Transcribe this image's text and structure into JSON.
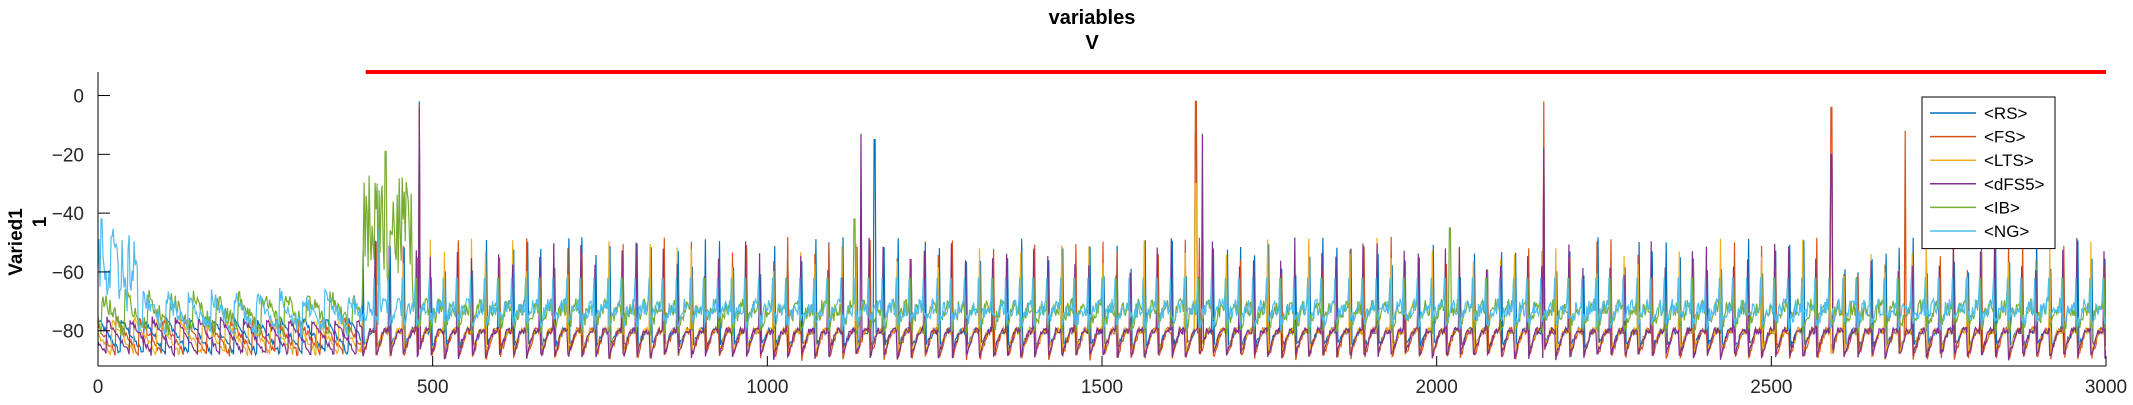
{
  "figure": {
    "title_line1": "variables",
    "title_line2": "V",
    "ylabel_line1": "Varied1",
    "ylabel_line2": "1"
  },
  "chart_data": {
    "type": "line",
    "title": "variables\nV",
    "xlabel": "",
    "ylabel": "Varied1 1",
    "xlim": [
      0,
      3000
    ],
    "ylim": [
      -92,
      8
    ],
    "xticks": [
      0,
      500,
      1000,
      1500,
      2000,
      2500,
      3000
    ],
    "yticks": [
      0,
      -20,
      -40,
      -60,
      -80
    ],
    "grid": false,
    "legend_position": "top-right",
    "stimulus_bar": {
      "x_start": 400,
      "x_end": 3000,
      "y": 8,
      "color": "#ff0000"
    },
    "series": [
      {
        "name": "<RS>",
        "color": "#0072bd",
        "baseline": -80,
        "trough": -86,
        "peaks": [
          {
            "t": 480,
            "v": -2
          },
          {
            "t": 1160,
            "v": -15
          },
          {
            "t": 1640,
            "v": -12
          },
          {
            "t": 2160,
            "v": -22
          },
          {
            "t": 2590,
            "v": -20
          }
        ]
      },
      {
        "name": "<FS>",
        "color": "#d95319",
        "baseline": -80,
        "trough": -90,
        "peaks": [
          {
            "t": 480,
            "v": -3
          },
          {
            "t": 1640,
            "v": -2
          },
          {
            "t": 2160,
            "v": -2
          },
          {
            "t": 2590,
            "v": -4
          },
          {
            "t": 2700,
            "v": -12
          }
        ]
      },
      {
        "name": "<LTS>",
        "color": "#edb120",
        "baseline": -80,
        "trough": -88,
        "peaks": [
          {
            "t": 1640,
            "v": -30
          },
          {
            "t": 2160,
            "v": -35
          }
        ]
      },
      {
        "name": "<dFS5>",
        "color": "#7e2f8e",
        "baseline": -80,
        "trough": -90,
        "peaks": [
          {
            "t": 480,
            "v": -4
          },
          {
            "t": 1140,
            "v": -13
          },
          {
            "t": 1650,
            "v": -13
          },
          {
            "t": 2160,
            "v": -18
          },
          {
            "t": 2590,
            "v": -20
          }
        ]
      },
      {
        "name": "<IB>",
        "color": "#77ac30",
        "baseline": -72,
        "trough": -80,
        "peaks": [
          {
            "t": 430,
            "v": -19
          },
          {
            "t": 1130,
            "v": -42
          },
          {
            "t": 2020,
            "v": -45
          }
        ]
      },
      {
        "name": "<NG>",
        "color": "#4dbeee",
        "baseline": -72,
        "trough": -78,
        "peaks": [
          {
            "t": 5,
            "v": -42
          },
          {
            "t": 20,
            "v": -48
          },
          {
            "t": 420,
            "v": -45
          }
        ]
      }
    ]
  }
}
